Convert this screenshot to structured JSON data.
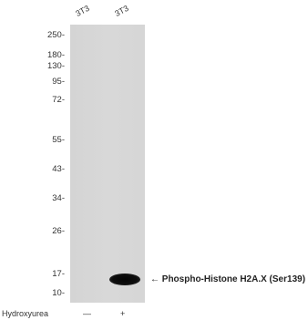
{
  "lanes": [
    {
      "label": "3T3"
    },
    {
      "label": "3T3"
    }
  ],
  "markers": [
    "250-",
    "180-",
    "130-",
    "95-",
    "72-",
    "55-",
    "43-",
    "34-",
    "26-",
    "17-",
    "10-"
  ],
  "band": {
    "annotation": "← Phospho-Histone H2A.X (Ser139)"
  },
  "treatment": {
    "label": "Hydroxyurea",
    "values": [
      "—",
      "+"
    ]
  }
}
